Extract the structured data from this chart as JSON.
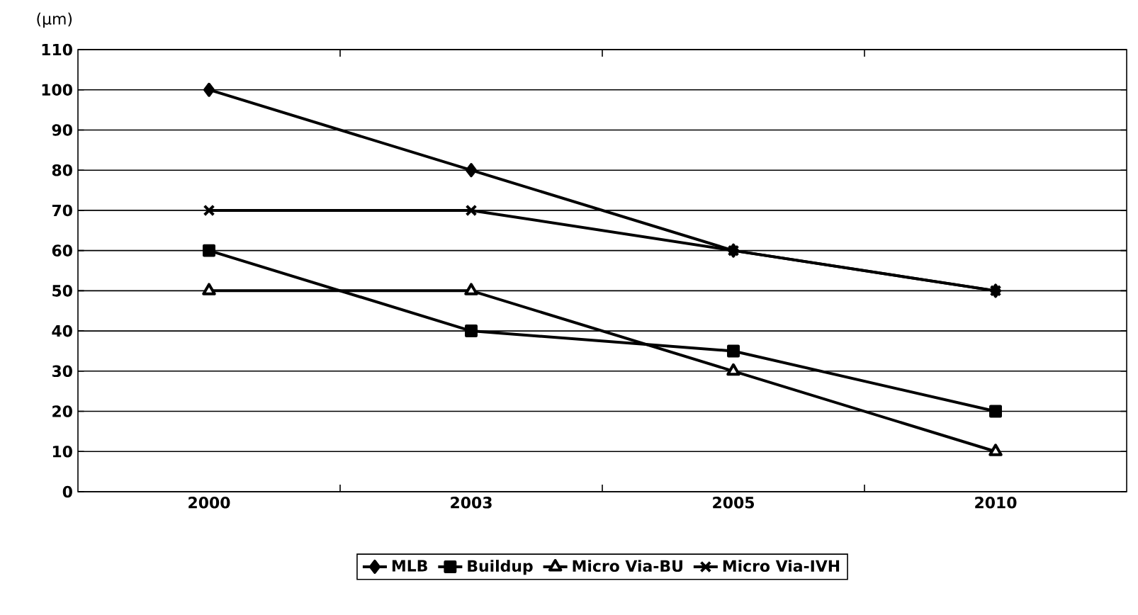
{
  "chart_data": {
    "type": "line",
    "ylabel": "(μm)",
    "categories": [
      "2000",
      "2003",
      "2005",
      "2010"
    ],
    "series": [
      {
        "name": "MLB",
        "color": "#000000",
        "marker": "diamond",
        "values": [
          100,
          80,
          60,
          50
        ]
      },
      {
        "name": "Buildup",
        "color": "#000000",
        "marker": "square",
        "values": [
          60,
          40,
          35,
          20
        ]
      },
      {
        "name": "Micro Via-BU",
        "color": "#000000",
        "marker": "triangle",
        "values": [
          50,
          50,
          30,
          10
        ]
      },
      {
        "name": "Micro Via-IVH",
        "color": "#000000",
        "marker": "cross",
        "values": [
          70,
          70,
          60,
          50
        ]
      }
    ],
    "ylim": [
      0,
      110
    ],
    "yticks": [
      0,
      10,
      20,
      30,
      40,
      50,
      60,
      70,
      80,
      90,
      100,
      110
    ],
    "grid": "y",
    "legend": "bottom",
    "line_style": "solid"
  }
}
